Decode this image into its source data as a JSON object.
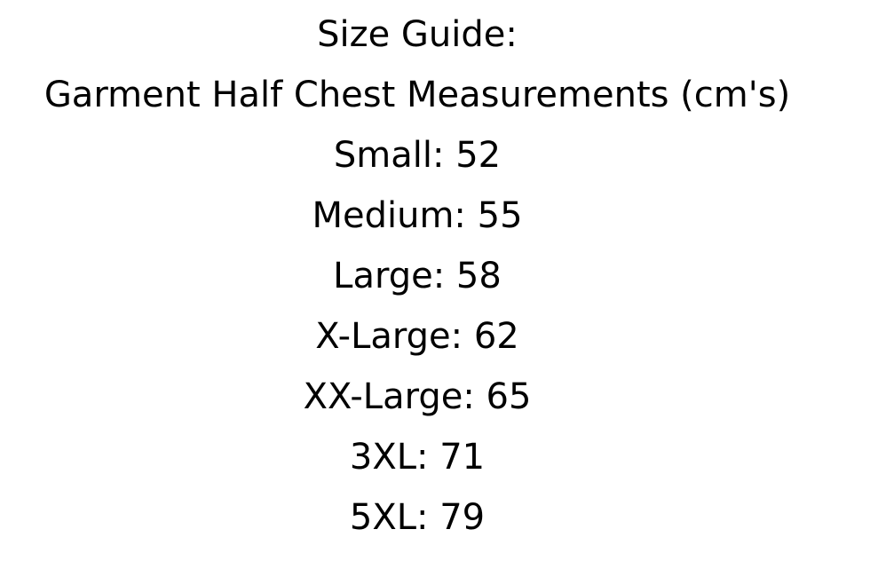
{
  "title": "Size Guide:",
  "subtitle": "Garment Half Chest Measurements (cm's)",
  "sizes": [
    {
      "text": "Small: 52"
    },
    {
      "text": "Medium: 55"
    },
    {
      "text": "Large: 58"
    },
    {
      "text": "X-Large: 62"
    },
    {
      "text": "XX-Large: 65"
    },
    {
      "text": "3XL: 71"
    },
    {
      "text": "5XL: 79"
    }
  ]
}
